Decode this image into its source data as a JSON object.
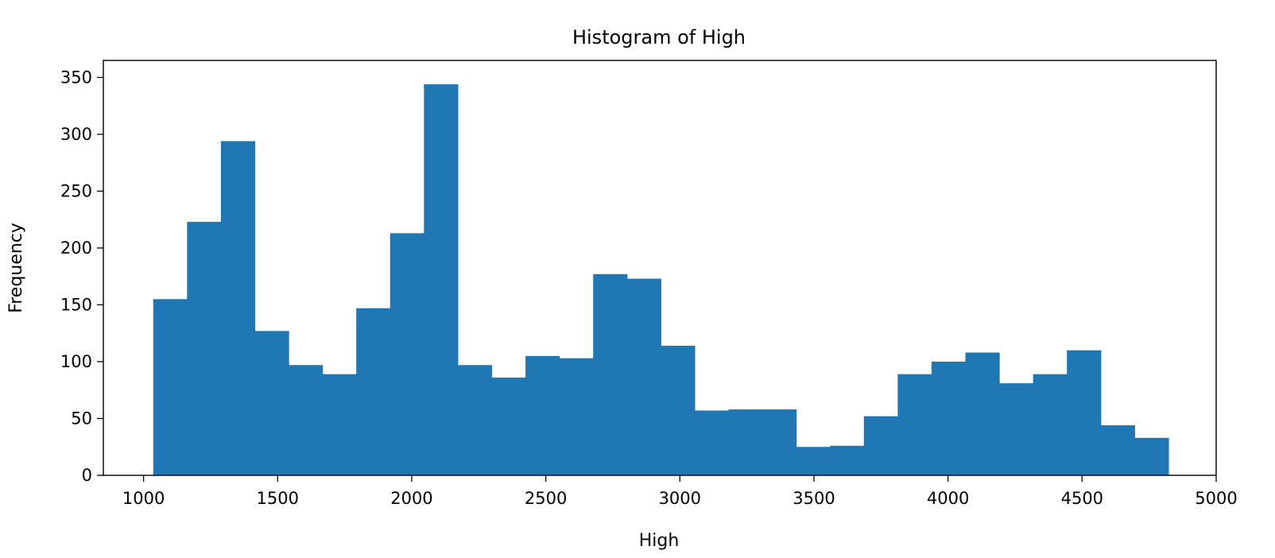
{
  "chart_data": {
    "type": "bar",
    "subtype": "histogram",
    "title": "Histogram of High",
    "xlabel": "High",
    "ylabel": "Frequency",
    "xlim": [
      850,
      5000
    ],
    "ylim": [
      0,
      365
    ],
    "xticks": [
      1000,
      1500,
      2000,
      2500,
      3000,
      3500,
      4000,
      4500,
      5000
    ],
    "yticks": [
      0,
      50,
      100,
      150,
      200,
      250,
      300,
      350
    ],
    "grid": false,
    "legend": "none",
    "bar_color": "#1f77b4",
    "bin_start": 1036,
    "bin_width": 126.2,
    "values": [
      155,
      223,
      294,
      127,
      97,
      89,
      147,
      213,
      344,
      97,
      86,
      105,
      103,
      177,
      173,
      114,
      57,
      58,
      58,
      25,
      26,
      52,
      89,
      100,
      108,
      81,
      89,
      110,
      44,
      33
    ]
  }
}
